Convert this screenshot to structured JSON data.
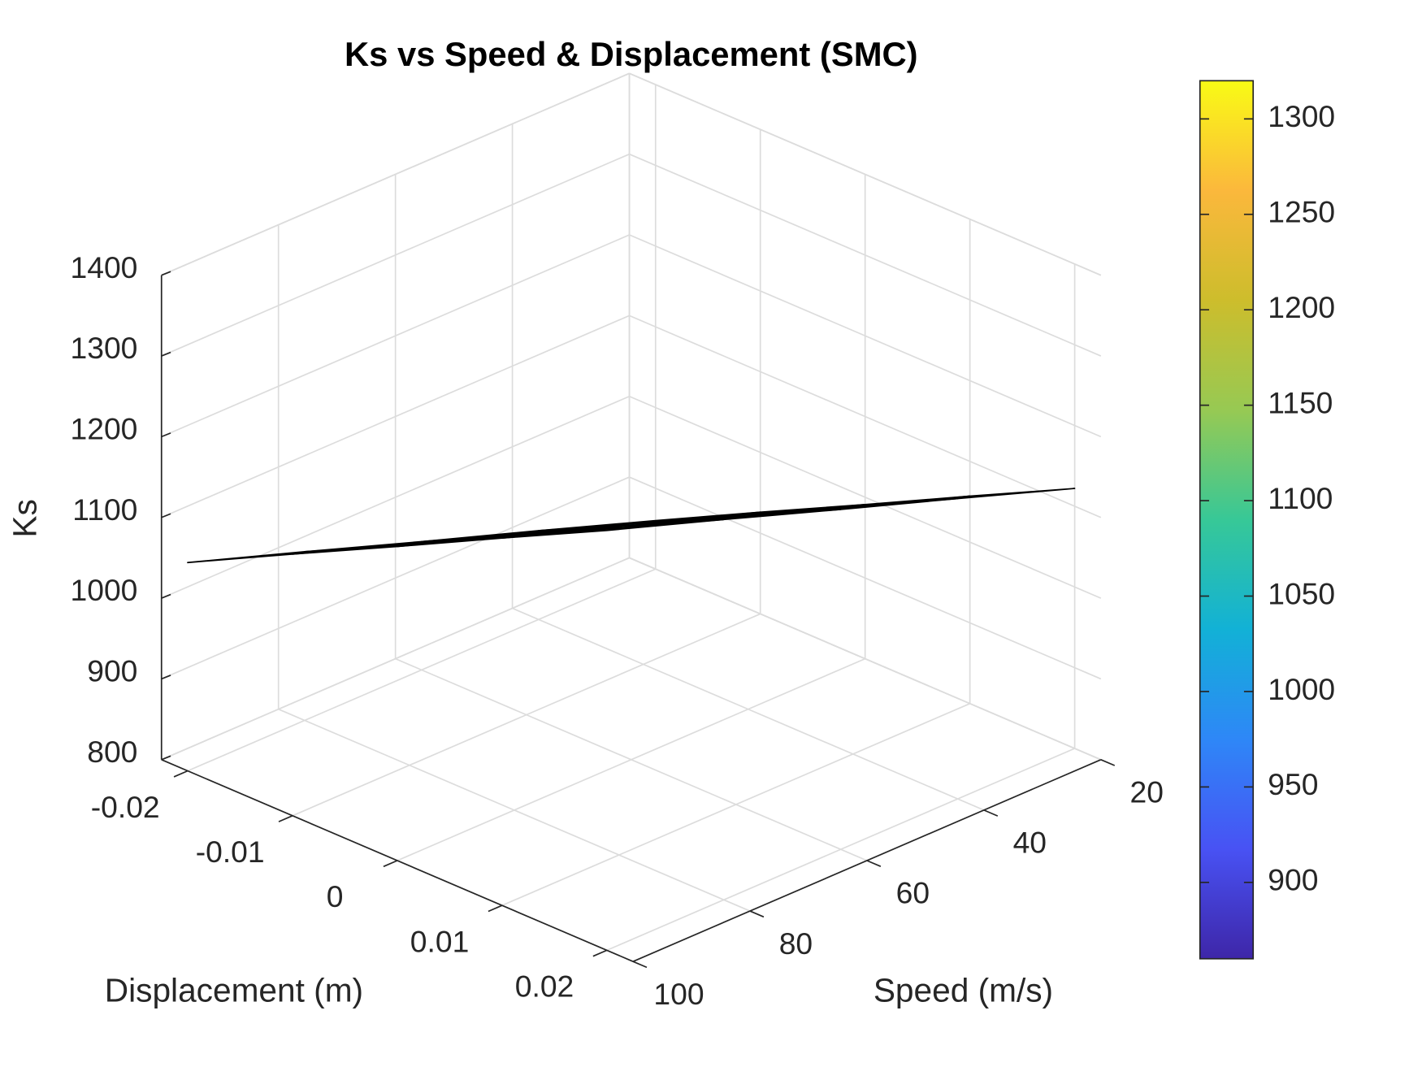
{
  "chart_data": {
    "type": "surface",
    "title": "Ks vs Speed & Displacement (SMC)",
    "xlabel": "Speed (m/s)",
    "ylabel": "Displacement (m)",
    "zlabel": "Ks",
    "x": [
      20,
      40,
      60,
      80,
      100
    ],
    "y": [
      -0.02,
      -0.01,
      0,
      0.01,
      0.02
    ],
    "z": [
      [
        860,
        910,
        959,
        1009,
        1058
      ],
      [
        926,
        975,
        1025,
        1074,
        1124
      ],
      [
        991,
        1041,
        1090,
        1140,
        1189
      ],
      [
        1057,
        1106,
        1156,
        1205,
        1255
      ],
      [
        1122,
        1172,
        1221,
        1271,
        1320
      ]
    ],
    "xlim": [
      20,
      100
    ],
    "xticks": [
      20,
      40,
      60,
      80,
      100
    ],
    "ylim": [
      -0.0225,
      0.0225
    ],
    "yticks": [
      -0.02,
      -0.01,
      0,
      0.01,
      0.02
    ],
    "zlim": [
      800,
      1400
    ],
    "zticks": [
      800,
      900,
      1000,
      1100,
      1200,
      1300,
      1400
    ],
    "colormap": "parula",
    "clim": [
      860,
      1320
    ],
    "colorbar_ticks": [
      900,
      950,
      1000,
      1050,
      1100,
      1150,
      1200,
      1250,
      1300
    ],
    "edge_color": "#000000",
    "grid": true
  }
}
